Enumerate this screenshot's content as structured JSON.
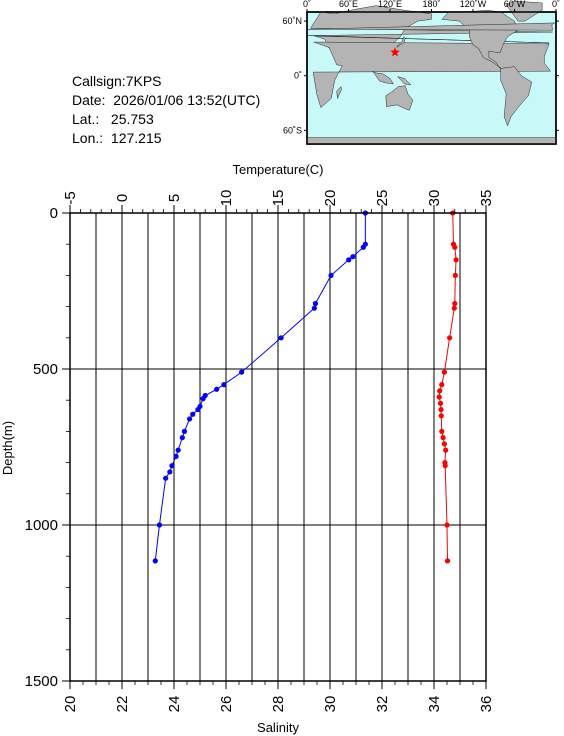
{
  "station": {
    "callsign_text": "Callsign:7KPS",
    "date_text": "Date:  2026/01/06 13:52(UTC)",
    "lat_text": "Lat.:   25.753",
    "lon_text": "Lon.:  127.215",
    "lat": 25.753,
    "lon": 127.215
  },
  "map": {
    "lon_labels": [
      "0˚",
      "60˚E",
      "120˚E",
      "180˚",
      "120˚W",
      "60˚W",
      "0˚"
    ],
    "lat_labels": [
      "60˚N",
      "0˚",
      "60˚S"
    ],
    "ocean_color": "#c8f8f8",
    "land_color": "#b4b4b4",
    "marker_color": "#ff0000"
  },
  "chart_data": {
    "type": "line",
    "ylabel": "Depth(m)",
    "ylim": [
      0,
      1500
    ],
    "y_reversed": true,
    "y_ticks": [
      0,
      500,
      1000,
      1500
    ],
    "grid": true,
    "temperature_axis": {
      "label": "Temperature(C)",
      "position": "top",
      "range": [
        -5,
        35
      ],
      "ticks": [
        -5,
        0,
        5,
        10,
        15,
        20,
        25,
        30,
        35
      ]
    },
    "salinity_axis": {
      "label": "Salinity",
      "position": "bottom",
      "range": [
        20,
        36
      ],
      "ticks": [
        20,
        22,
        24,
        26,
        28,
        30,
        32,
        34,
        36
      ]
    },
    "series": [
      {
        "axis": "temperature",
        "color": "#0000ff",
        "points": [
          {
            "x": 23.4,
            "y": 0
          },
          {
            "x": 23.4,
            "y": 100
          },
          {
            "x": 23.2,
            "y": 110
          },
          {
            "x": 22.2,
            "y": 140
          },
          {
            "x": 21.8,
            "y": 150
          },
          {
            "x": 20.1,
            "y": 200
          },
          {
            "x": 18.6,
            "y": 290
          },
          {
            "x": 18.5,
            "y": 305
          },
          {
            "x": 15.3,
            "y": 400
          },
          {
            "x": 11.5,
            "y": 510
          },
          {
            "x": 9.8,
            "y": 550
          },
          {
            "x": 9.1,
            "y": 565
          },
          {
            "x": 8.0,
            "y": 585
          },
          {
            "x": 7.8,
            "y": 595
          },
          {
            "x": 7.5,
            "y": 620
          },
          {
            "x": 7.3,
            "y": 630
          },
          {
            "x": 6.8,
            "y": 645
          },
          {
            "x": 6.5,
            "y": 660
          },
          {
            "x": 6.0,
            "y": 700
          },
          {
            "x": 5.8,
            "y": 720
          },
          {
            "x": 5.4,
            "y": 760
          },
          {
            "x": 5.2,
            "y": 780
          },
          {
            "x": 4.8,
            "y": 810
          },
          {
            "x": 4.6,
            "y": 830
          },
          {
            "x": 4.2,
            "y": 850
          },
          {
            "x": 3.6,
            "y": 1000
          },
          {
            "x": 3.2,
            "y": 1115
          }
        ]
      },
      {
        "axis": "salinity",
        "color": "#ff0000",
        "points": [
          {
            "x": 34.72,
            "y": 0
          },
          {
            "x": 34.75,
            "y": 100
          },
          {
            "x": 34.8,
            "y": 110
          },
          {
            "x": 34.85,
            "y": 150
          },
          {
            "x": 34.82,
            "y": 200
          },
          {
            "x": 34.8,
            "y": 290
          },
          {
            "x": 34.78,
            "y": 305
          },
          {
            "x": 34.6,
            "y": 400
          },
          {
            "x": 34.4,
            "y": 510
          },
          {
            "x": 34.3,
            "y": 550
          },
          {
            "x": 34.22,
            "y": 570
          },
          {
            "x": 34.2,
            "y": 590
          },
          {
            "x": 34.25,
            "y": 610
          },
          {
            "x": 34.27,
            "y": 630
          },
          {
            "x": 34.28,
            "y": 650
          },
          {
            "x": 34.3,
            "y": 700
          },
          {
            "x": 34.35,
            "y": 720
          },
          {
            "x": 34.4,
            "y": 740
          },
          {
            "x": 34.45,
            "y": 760
          },
          {
            "x": 34.42,
            "y": 800
          },
          {
            "x": 34.43,
            "y": 810
          },
          {
            "x": 34.5,
            "y": 1000
          },
          {
            "x": 34.52,
            "y": 1115
          }
        ]
      },
      {
        "axis": "temperature",
        "style": "surface-line",
        "color": "#ff0000",
        "points": [
          {
            "x": 12.9,
            "y": 0
          },
          {
            "x": 23.4,
            "y": 0
          }
        ]
      }
    ]
  }
}
